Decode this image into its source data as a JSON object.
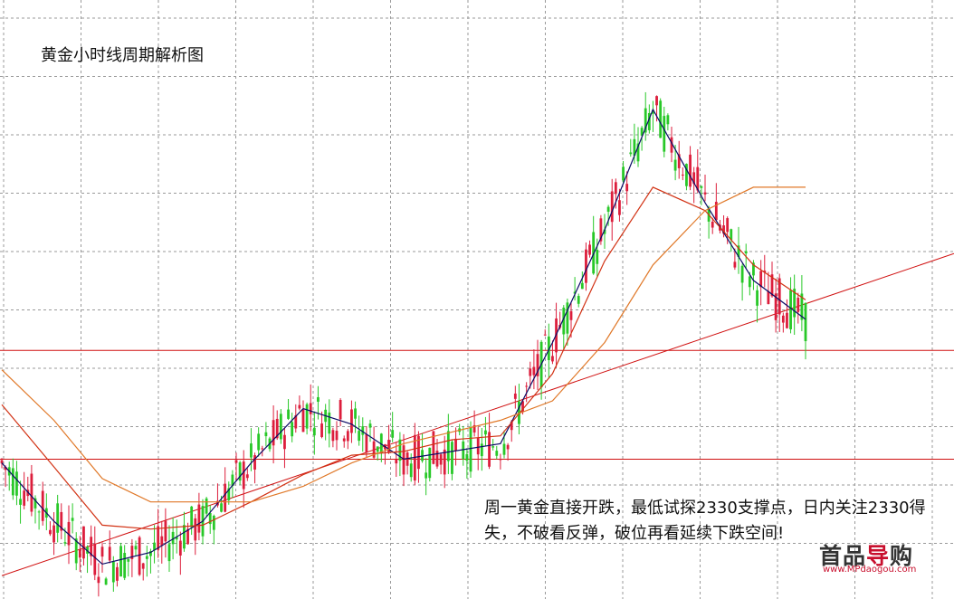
{
  "chart_data": {
    "type": "candlestick",
    "title": "黄金小时线周期解析图",
    "annotation": "周一黄金直接开跌，最低试探2330支撑点，日内关注2330得失，不破看反弹，破位再看延续下跌空间!",
    "ylim": [
      2310,
      2460
    ],
    "horizontal_lines": [
      2374,
      2346
    ],
    "trendline": {
      "from": [
        0,
        2316
      ],
      "to": [
        216,
        2386
      ]
    },
    "colors": {
      "up": "#dc1e3c",
      "down": "#28c828",
      "ma_fast": "#0b0b66",
      "ma_mid": "#d23214",
      "ma_slow": "#e07828",
      "levels": "#d01010",
      "grid": "#9a9a9a"
    },
    "series": [
      {
        "name": "MA-fast",
        "values": [
          2345,
          2330,
          2319,
          2322,
          2330,
          2345,
          2359,
          2355,
          2346,
          2348,
          2350,
          2376,
          2405,
          2436,
          2412,
          2392,
          2382
        ]
      },
      {
        "name": "MA-mid",
        "values": [
          2360,
          2344,
          2329,
          2328,
          2329,
          2335,
          2342,
          2347,
          2348,
          2351,
          2352,
          2368,
          2397,
          2416,
          2410,
          2396,
          2387
        ]
      },
      {
        "name": "MA-slow",
        "values": [
          2369,
          2356,
          2341,
          2335,
          2335,
          2335,
          2339,
          2345,
          2350,
          2353,
          2356,
          2361,
          2376,
          2396,
          2410,
          2416,
          2416
        ]
      }
    ],
    "ma_x": [
      0,
      14,
      27,
      40,
      54,
      67,
      81,
      94,
      108,
      121,
      134,
      148,
      162,
      175,
      189,
      202,
      216
    ]
  },
  "logo": {
    "name_left": "首品",
    "name_mid": "导",
    "name_right": "购",
    "url": "www.MPdaogou.com"
  }
}
